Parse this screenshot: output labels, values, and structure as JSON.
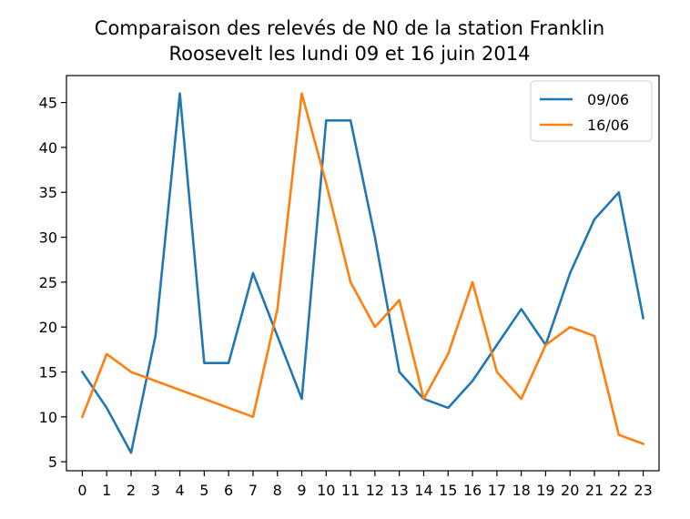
{
  "chart_data": {
    "type": "line",
    "title_lines": [
      "Comparaison des relevés de N0 de la station Franklin",
      "Roosevelt les lundi 09 et 16 juin 2014"
    ],
    "xlabel": "",
    "ylabel": "",
    "x": [
      0,
      1,
      2,
      3,
      4,
      5,
      6,
      7,
      8,
      9,
      10,
      11,
      12,
      13,
      14,
      15,
      16,
      17,
      18,
      19,
      20,
      21,
      22,
      23
    ],
    "x_tick_labels": [
      "0",
      "1",
      "2",
      "3",
      "4",
      "5",
      "6",
      "7",
      "8",
      "9",
      "10",
      "11",
      "12",
      "13",
      "14",
      "15",
      "16",
      "17",
      "18",
      "19",
      "20",
      "21",
      "22",
      "23"
    ],
    "xlim": [
      -0.65,
      23.65
    ],
    "ylim": [
      4.0,
      48.0
    ],
    "y_ticks": [
      5,
      10,
      15,
      20,
      25,
      30,
      35,
      40,
      45
    ],
    "y_tick_labels": [
      "5",
      "10",
      "15",
      "20",
      "25",
      "30",
      "35",
      "40",
      "45"
    ],
    "grid": false,
    "legend_position": "top-right",
    "series": [
      {
        "name": "09/06",
        "color": "#1f77b4",
        "values": [
          15,
          11,
          6,
          19,
          46,
          16,
          16,
          26,
          19,
          12,
          43,
          43,
          30,
          15,
          12,
          11,
          14,
          18,
          22,
          18,
          26,
          32,
          35,
          21
        ]
      },
      {
        "name": "16/06",
        "color": "#ff7f0e",
        "values": [
          10,
          17,
          15,
          14,
          13,
          12,
          11,
          10,
          22,
          46,
          36,
          25,
          20,
          23,
          12,
          17,
          25,
          15,
          12,
          18,
          20,
          19,
          8,
          7
        ]
      }
    ]
  }
}
